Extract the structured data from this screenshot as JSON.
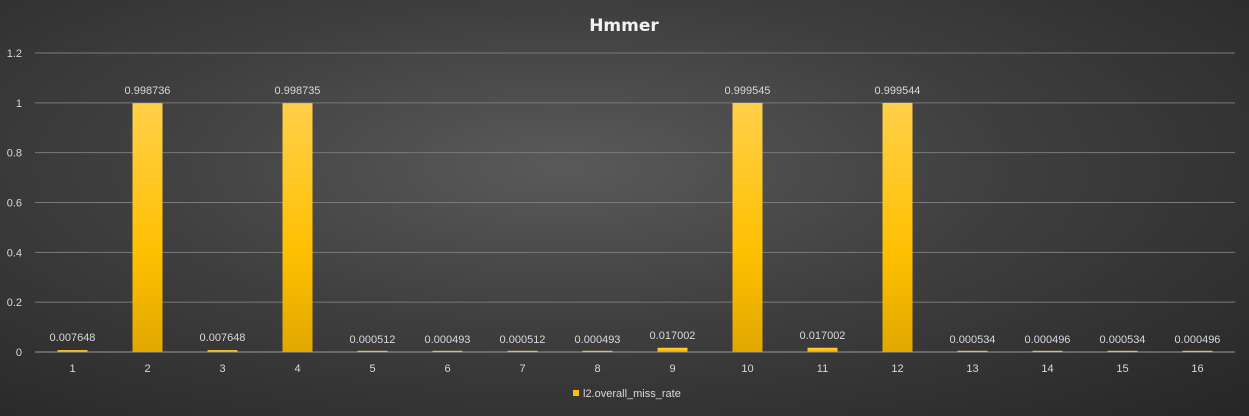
{
  "chart_data": {
    "type": "bar",
    "title": "Hmmer",
    "xlabel": "",
    "ylabel": "",
    "categories": [
      "1",
      "2",
      "3",
      "4",
      "5",
      "6",
      "7",
      "8",
      "9",
      "10",
      "11",
      "12",
      "13",
      "14",
      "15",
      "16"
    ],
    "series": [
      {
        "name": "l2.overall_miss_rate",
        "values": [
          0.007648,
          0.998736,
          0.007648,
          0.998735,
          0.000512,
          0.000493,
          0.000512,
          0.000493,
          0.017002,
          0.999545,
          0.017002,
          0.999544,
          0.000534,
          0.000496,
          0.000534,
          0.000496
        ],
        "labels": [
          "0.007648",
          "0.998736",
          "0.007648",
          "0.998735",
          "0.000512",
          "0.000493",
          "0.000512",
          "0.000493",
          "0.017002",
          "0.999545",
          "0.017002",
          "0.999544",
          "0.000534",
          "0.000496",
          "0.000534",
          "0.000496"
        ]
      }
    ],
    "ylim": [
      0,
      1.2
    ],
    "yticks": [
      "0",
      "0.2",
      "0.4",
      "0.6",
      "0.8",
      "1",
      "1.2"
    ],
    "grid": true,
    "legend_position": "bottom",
    "bar_color": "#ffc000"
  }
}
